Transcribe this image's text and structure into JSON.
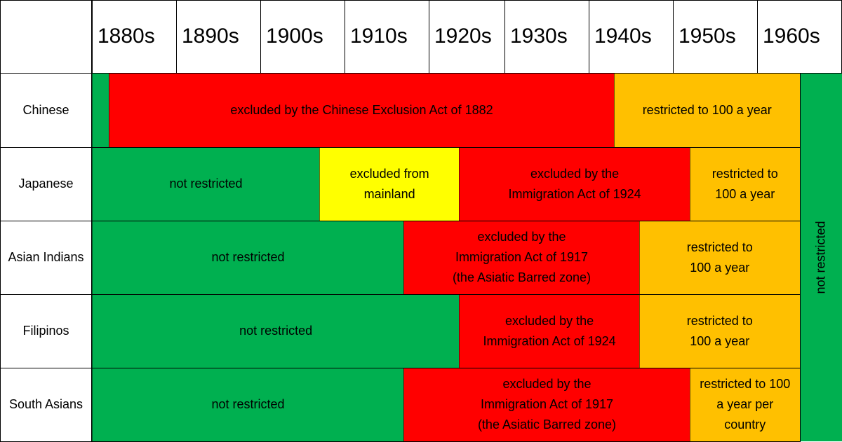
{
  "chart_data": {
    "type": "table",
    "title": "",
    "decades": [
      "1880s",
      "1890s",
      "1900s",
      "1910s",
      "1920s",
      "1930s",
      "1940s",
      "1950s",
      "1960s"
    ],
    "x_range": [
      1880,
      1970
    ],
    "colors": {
      "not_restricted": "#00b050",
      "excluded": "#ff0000",
      "excluded_mainland": "#ffff00",
      "restricted": "#ffc000"
    },
    "rows": [
      {
        "group": "Chinese",
        "segments": [
          {
            "start": 1880,
            "end": 1882,
            "status": "not_restricted",
            "text": ""
          },
          {
            "start": 1882,
            "end": 1943,
            "status": "excluded",
            "text": "excluded by the Chinese Exclusion Act of 1882"
          },
          {
            "start": 1943,
            "end": 1965,
            "status": "restricted",
            "text": "restricted to 100 a year"
          }
        ]
      },
      {
        "group": "Japanese",
        "segments": [
          {
            "start": 1880,
            "end": 1907,
            "status": "not_restricted",
            "text": "not restricted"
          },
          {
            "start": 1907,
            "end": 1924,
            "status": "excluded_mainland",
            "text": "excluded from\nmainland"
          },
          {
            "start": 1924,
            "end": 1952,
            "status": "excluded",
            "text": "excluded by the\nImmigration Act of 1924"
          },
          {
            "start": 1952,
            "end": 1965,
            "status": "restricted",
            "text": "restricted to\n100 a year"
          }
        ]
      },
      {
        "group": "Asian Indians",
        "segments": [
          {
            "start": 1880,
            "end": 1917,
            "status": "not_restricted",
            "text": "not restricted"
          },
          {
            "start": 1917,
            "end": 1946,
            "status": "excluded",
            "text": "excluded by the\nImmigration Act of 1917\n(the Asiatic Barred zone)"
          },
          {
            "start": 1946,
            "end": 1965,
            "status": "restricted",
            "text": "restricted to\n100 a year"
          }
        ]
      },
      {
        "group": "Filipinos",
        "segments": [
          {
            "start": 1880,
            "end": 1924,
            "status": "not_restricted",
            "text": "not restricted"
          },
          {
            "start": 1924,
            "end": 1946,
            "status": "excluded",
            "text": "excluded by the\nImmigration Act of 1924"
          },
          {
            "start": 1946,
            "end": 1965,
            "status": "restricted",
            "text": "restricted to\n100 a year"
          }
        ]
      },
      {
        "group": "South Asians",
        "segments": [
          {
            "start": 1880,
            "end": 1917,
            "status": "not_restricted",
            "text": "not restricted"
          },
          {
            "start": 1917,
            "end": 1952,
            "status": "excluded",
            "text": "excluded by the\nImmigration Act of 1917\n(the Asiatic Barred zone)"
          },
          {
            "start": 1952,
            "end": 1965,
            "status": "restricted",
            "text": "restricted to 100\na year per\ncountry"
          }
        ]
      }
    ],
    "spanning": {
      "start": 1965,
      "end": 1970,
      "status": "not_restricted",
      "text": "not restricted"
    }
  }
}
